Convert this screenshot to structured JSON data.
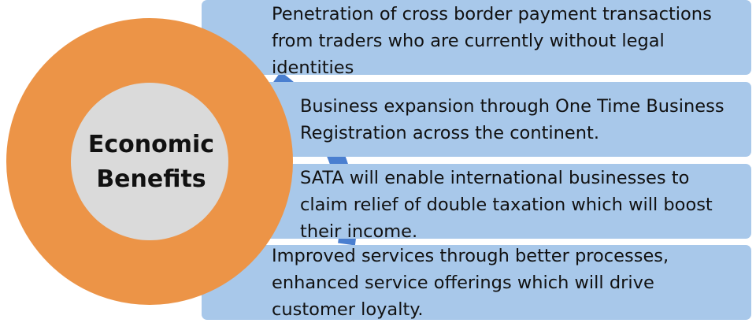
{
  "center": {
    "line1": "Economic",
    "line2": "Benefits"
  },
  "items": [
    {
      "line1": "Penetration of cross border payment transactions",
      "line2": "from traders who are currently without legal",
      "line3": "identities"
    },
    {
      "line1": "Business expansion through One Time Business",
      "line2": "Registration across the continent."
    },
    {
      "line1": "SATA will enable international businesses to",
      "line2": "claim relief of double taxation which will boost",
      "line3": "their income."
    },
    {
      "line1": "Improved services through better processes,",
      "line2": "enhanced service offerings which will drive",
      "line3": "customer loyalty."
    }
  ],
  "colors": {
    "ring": "#ec9447",
    "inner": "#dadada",
    "box": "#a8c8ea",
    "arc": "#4a7fd0"
  }
}
